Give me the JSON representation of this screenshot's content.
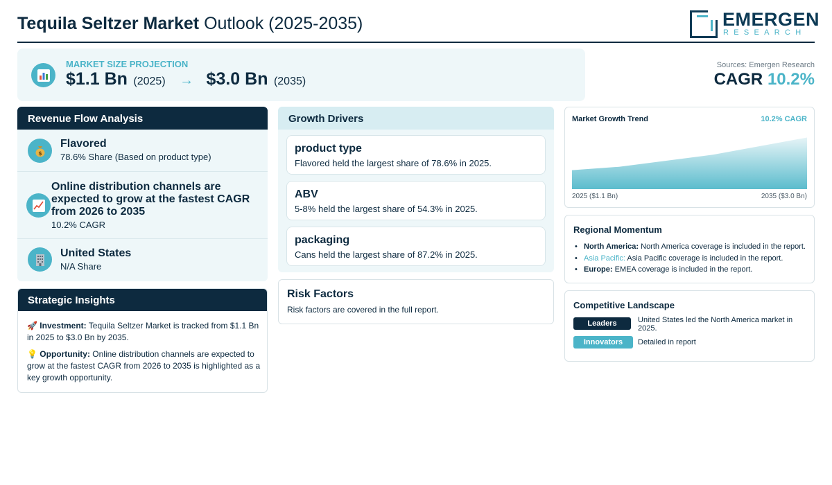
{
  "header": {
    "title_bold": "Tequila Seltzer Market",
    "title_rest": "Outlook (2025-2035)",
    "logo_name": "EMERGEN",
    "logo_sub": "RESEARCH"
  },
  "projection": {
    "label": "MARKET SIZE PROJECTION",
    "start_value": "$1.1 Bn",
    "start_year": "(2025)",
    "arrow": "→",
    "end_value": "$3.0 Bn",
    "end_year": "(2035)",
    "icon": "bar-chart-icon"
  },
  "summary": {
    "sources": "Sources: Emergen Research",
    "cagr_label": "CAGR",
    "cagr_value": "10.2%"
  },
  "revenue_flow": {
    "heading": "Revenue Flow Analysis",
    "items": [
      {
        "icon": "money-bag-icon",
        "title": "Flavored",
        "subtitle": "78.6% Share (Based on product type)"
      },
      {
        "icon": "chart-increasing-icon",
        "title": "Online distribution channels are expected to grow at the fastest CAGR from 2026 to 2035",
        "subtitle": "10.2% CAGR"
      },
      {
        "icon": "office-building-icon",
        "title": "United States",
        "subtitle": "N/A Share"
      }
    ]
  },
  "strategic_insights": {
    "heading": "Strategic Insights",
    "items": [
      {
        "icon": "rocket-icon",
        "label": "Investment:",
        "text": "Tequila Seltzer Market is tracked from $1.1 Bn in 2025 to $3.0 Bn by 2035."
      },
      {
        "icon": "light-bulb-icon",
        "label": "Opportunity:",
        "text": "Online distribution channels are expected to grow at the fastest CAGR from 2026 to 2035 is highlighted as a key growth opportunity."
      }
    ]
  },
  "growth_drivers": {
    "heading": "Growth Drivers",
    "items": [
      {
        "title": "product type",
        "text": "Flavored held the largest share of 78.6% in 2025."
      },
      {
        "title": "ABV",
        "text": "5-8% held the largest share of 54.3% in 2025."
      },
      {
        "title": "packaging",
        "text": "Cans held the largest share of 87.2% in 2025."
      }
    ]
  },
  "risk_factors": {
    "heading": "Risk Factors",
    "text": "Risk factors are covered in the full report."
  },
  "market_trend": {
    "title": "Market Growth Trend",
    "cagr_label": "10.2% CAGR",
    "start_label": "2025 ($1.1 Bn)",
    "end_label": "2035 ($3.0 Bn)"
  },
  "chart_data": {
    "type": "area",
    "title": "Market Growth Trend",
    "x": [
      2025,
      2027,
      2031,
      2035
    ],
    "values": [
      1.1,
      1.3,
      2.0,
      3.0
    ],
    "xlim": [
      2025,
      2035
    ],
    "ylim": [
      0,
      3.3
    ],
    "grid": false,
    "colors": {
      "top": "#e6f4f7",
      "bottom": "#5bbccd"
    }
  },
  "regional_momentum": {
    "heading": "Regional Momentum",
    "items": [
      {
        "region": "North America:",
        "text": "North America coverage is included in the report."
      },
      {
        "region": "Asia Pacific:",
        "text": "Asia Pacific coverage is included in the report."
      },
      {
        "region": "Europe:",
        "text": "EMEA coverage is included in the report."
      }
    ]
  },
  "competitive_landscape": {
    "heading": "Competitive Landscape",
    "leaders_label": "Leaders",
    "leaders_text": "United States led the North America market in 2025.",
    "innovators_label": "Innovators",
    "innovators_text": "Detailed in report"
  },
  "colors": {
    "navy": "#0d2a3f",
    "accent": "#4bb4c8",
    "panel": "#eef7f9"
  }
}
